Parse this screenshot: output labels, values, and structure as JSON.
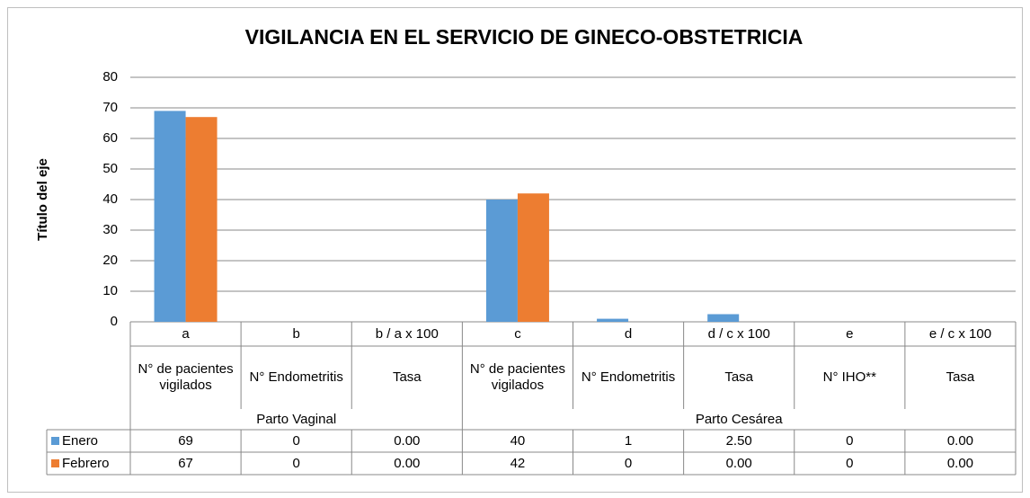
{
  "chart_data": {
    "type": "bar",
    "title": "VIGILANCIA EN EL SERVICIO DE GINECO-OBSTETRICIA",
    "ylabel": "Título del eje",
    "categories": [
      "a",
      "b",
      "b / a x 100",
      "c",
      "d",
      "d / c x 100",
      "e",
      "e / c x 100"
    ],
    "category_descriptions": [
      "N° de pacientes vigilados",
      "N° Endometritis",
      "Tasa",
      "N° de pacientes vigilados",
      "N° Endometritis",
      "Tasa",
      "N° IHO**",
      "Tasa"
    ],
    "category_groups": [
      {
        "label": "Parto Vaginal",
        "span": 3
      },
      {
        "label": "Parto Cesárea",
        "span": 5
      }
    ],
    "series": [
      {
        "name": "Enero",
        "color": "#5b9bd5",
        "values": [
          69,
          0,
          0,
          40,
          1,
          2.5,
          0,
          0
        ],
        "value_labels": [
          "69",
          "0",
          "0.00",
          "40",
          "1",
          "2.50",
          "0",
          "0.00"
        ]
      },
      {
        "name": "Febrero",
        "color": "#ed7d31",
        "values": [
          67,
          0,
          0,
          42,
          0,
          0,
          0,
          0
        ],
        "value_labels": [
          "67",
          "0",
          "0.00",
          "42",
          "0",
          "0.00",
          "0",
          "0.00"
        ]
      }
    ],
    "ylim": [
      0,
      80
    ],
    "yticks": [
      0,
      10,
      20,
      30,
      40,
      50,
      60,
      70,
      80
    ],
    "grid": true
  }
}
